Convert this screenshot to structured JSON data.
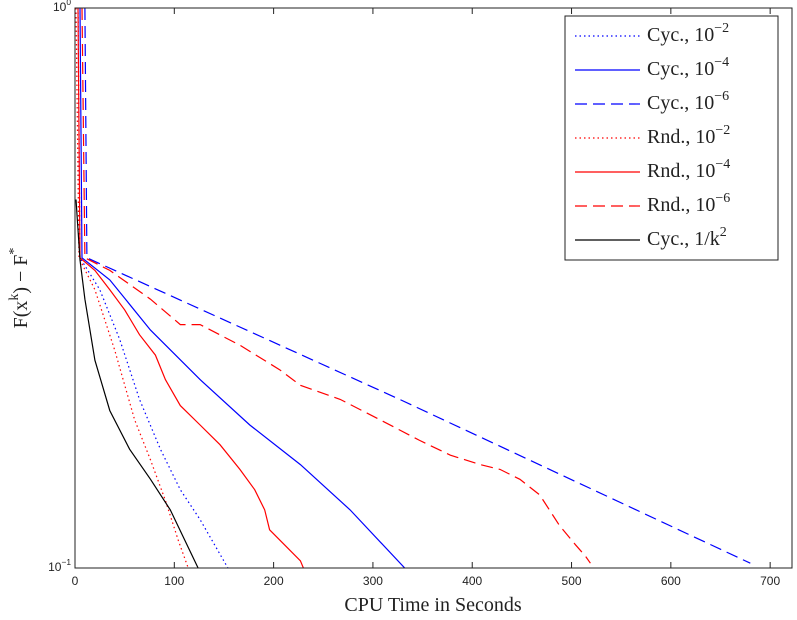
{
  "chart_data": {
    "type": "line",
    "xlabel": "CPU Time in Seconds",
    "ylabel": "F(x^{k}) − F^{*}",
    "xlim": [
      0,
      722
    ],
    "xticks": [
      0,
      100,
      200,
      300,
      400,
      500,
      600,
      700
    ],
    "ylim": [
      0.1,
      1
    ],
    "yscale": "log",
    "yticks": [
      {
        "value": 0.1,
        "label": "10^{−1}"
      },
      {
        "value": 1,
        "label": "10^{0}"
      }
    ],
    "legend": "upper right",
    "series": [
      {
        "name": "Cyc., 10^{−2}",
        "color": "#0000ff",
        "dash": "dotted",
        "x": [
          3,
          5,
          25,
          45,
          65,
          86,
          106,
          126,
          154
        ],
        "values": [
          1,
          0.358,
          0.314,
          0.256,
          0.2,
          0.163,
          0.138,
          0.122,
          0.1
        ]
      },
      {
        "name": "Cyc., 10^{−4}",
        "color": "#0000ff",
        "dash": "solid",
        "x": [
          5,
          7,
          35,
          76,
          126,
          176,
          227,
          277,
          332
        ],
        "values": [
          1,
          0.358,
          0.327,
          0.266,
          0.217,
          0.18,
          0.153,
          0.127,
          0.1
        ]
      },
      {
        "name": "Cyc., 10^{−6}",
        "color": "#0000ff",
        "dash": "dashed",
        "x": [
          10,
          12,
          327,
          680
        ],
        "values": [
          1,
          0.358,
          0.2,
          0.102
        ]
      },
      {
        "name": "Rnd., 10^{−2}",
        "color": "#ff0000",
        "dash": "dotted",
        "x": [
          1,
          4,
          20,
          40,
          60,
          76,
          91,
          104,
          114
        ],
        "values": [
          1,
          0.358,
          0.314,
          0.245,
          0.184,
          0.156,
          0.132,
          0.112,
          0.1
        ]
      },
      {
        "name": "Rnd., 10^{−4}",
        "color": "#ff0000",
        "dash": "solid",
        "x": [
          3,
          5,
          20,
          35,
          50,
          65,
          81,
          91,
          106,
          126,
          146,
          166,
          181,
          191,
          196,
          211,
          227,
          230
        ],
        "values": [
          1,
          0.358,
          0.34,
          0.314,
          0.289,
          0.261,
          0.24,
          0.217,
          0.195,
          0.18,
          0.166,
          0.15,
          0.138,
          0.127,
          0.117,
          0.11,
          0.103,
          0.1
        ]
      },
      {
        "name": "Rnd., 10^{−6}",
        "color": "#ff0000",
        "dash": "dashed",
        "x": [
          7,
          10,
          35,
          76,
          106,
          126,
          166,
          206,
          227,
          267,
          307,
          347,
          378,
          408,
          428,
          448,
          468,
          488,
          504,
          514,
          519
        ],
        "values": [
          1,
          0.358,
          0.34,
          0.302,
          0.272,
          0.272,
          0.25,
          0.226,
          0.212,
          0.2,
          0.184,
          0.169,
          0.159,
          0.153,
          0.15,
          0.144,
          0.135,
          0.119,
          0.11,
          0.105,
          0.102
        ]
      },
      {
        "name": "Cyc., 1/k^{2}",
        "color": "#000000",
        "dash": "solid",
        "x": [
          1,
          5,
          10,
          20,
          35,
          55,
          76,
          96,
          124
        ],
        "values": [
          0.455,
          0.355,
          0.302,
          0.235,
          0.191,
          0.163,
          0.144,
          0.127,
          0.1
        ]
      }
    ]
  }
}
